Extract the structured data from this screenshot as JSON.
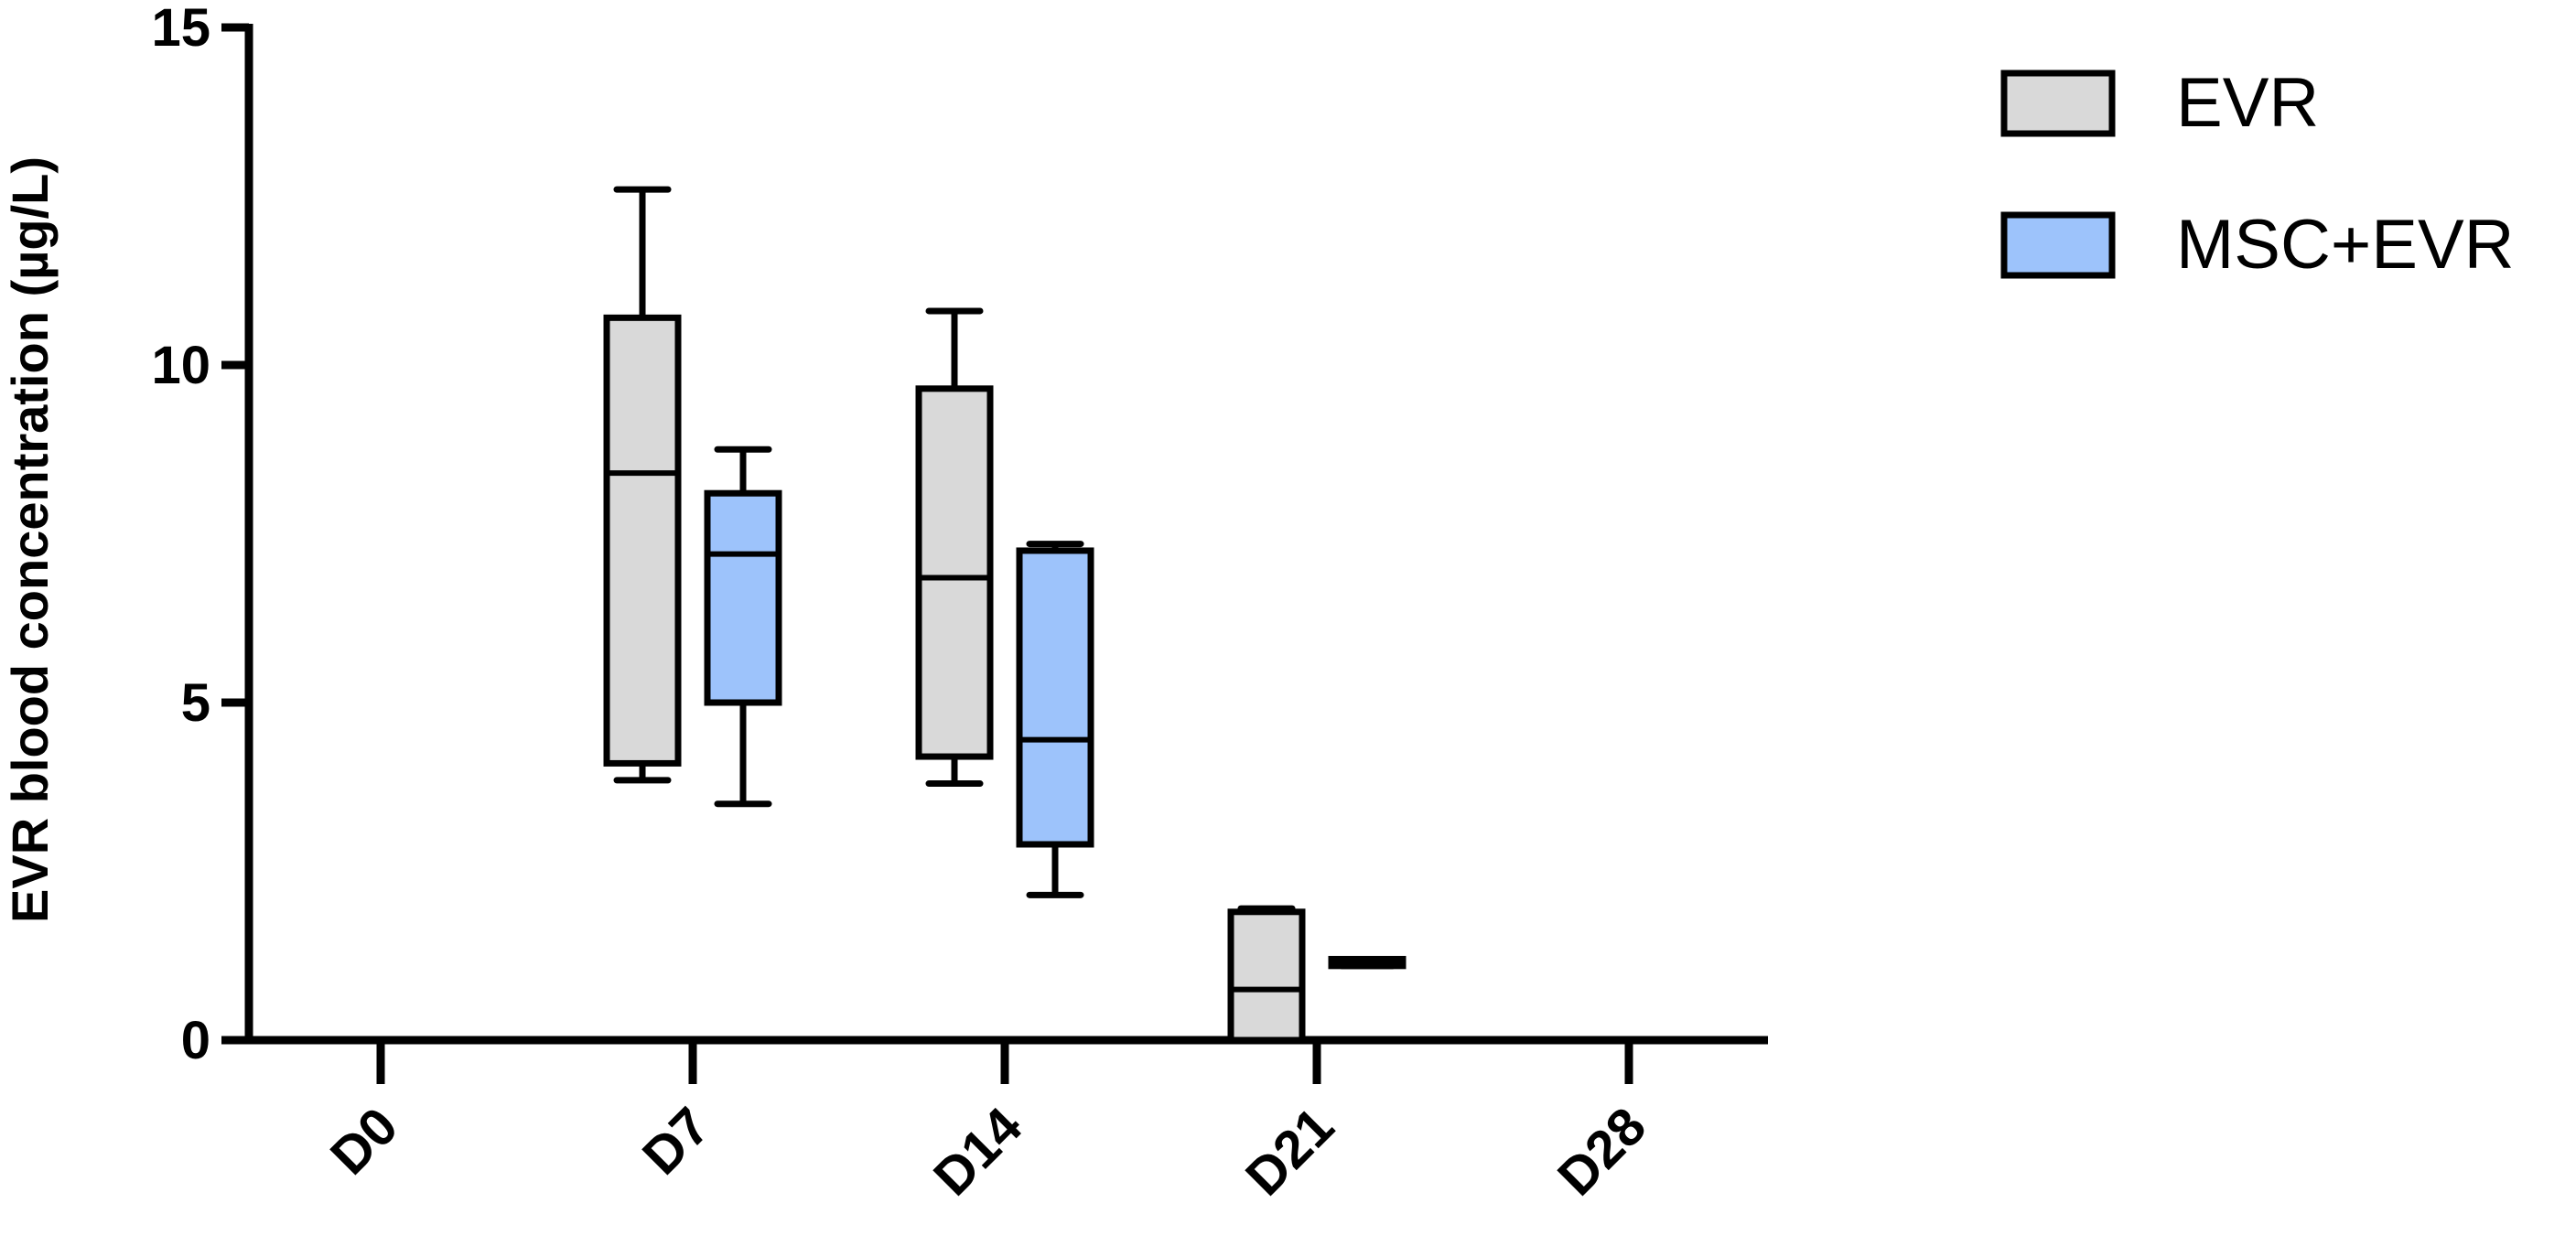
{
  "chart_data": {
    "type": "box",
    "ylabel": "EVR blood concentration (µg/L)",
    "xlabel": "",
    "ylim": [
      0,
      15
    ],
    "yticks": [
      0,
      5,
      10,
      15
    ],
    "categories": [
      "D0",
      "D7",
      "D14",
      "D21",
      "D28"
    ],
    "legend_position": "top-right",
    "grid": false,
    "series": [
      {
        "name": "EVR",
        "color": "#d9d9d9",
        "boxes": [
          null,
          {
            "min": 3.85,
            "q1": 4.1,
            "median": 8.4,
            "q3": 10.7,
            "max": 12.6
          },
          {
            "min": 3.8,
            "q1": 4.2,
            "median": 6.85,
            "q3": 9.65,
            "max": 10.8
          },
          {
            "min": 0,
            "q1": 0,
            "median": 0.75,
            "q3": 1.9,
            "max": 1.95
          },
          null
        ]
      },
      {
        "name": "MSC+EVR",
        "color": "#9dc3fb",
        "boxes": [
          null,
          {
            "min": 3.5,
            "q1": 5.0,
            "median": 7.2,
            "q3": 8.1,
            "max": 8.75
          },
          {
            "min": 2.15,
            "q1": 2.9,
            "median": 4.45,
            "q3": 7.25,
            "max": 7.35
          },
          {
            "min": 1.1,
            "q1": 1.1,
            "median": 1.15,
            "q3": 1.2,
            "max": 1.2
          },
          null
        ]
      }
    ]
  }
}
